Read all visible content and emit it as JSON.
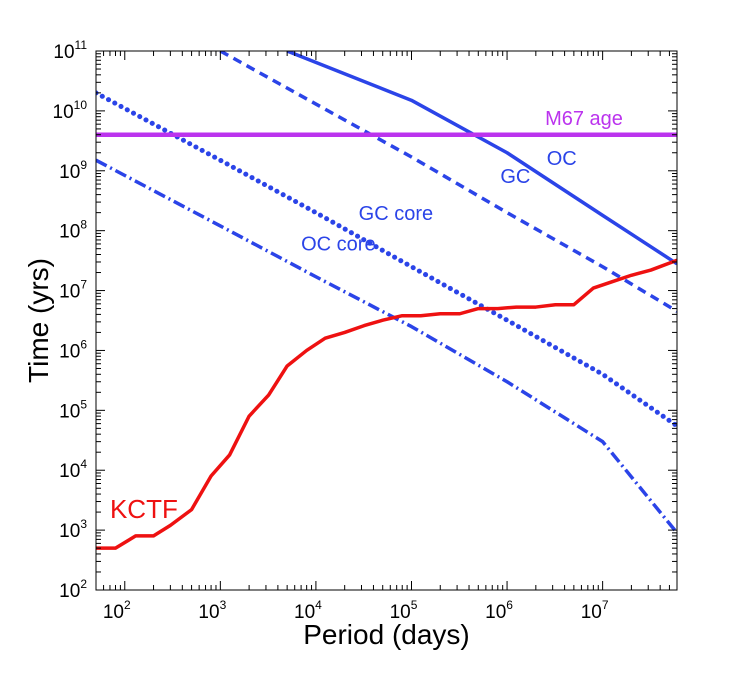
{
  "chart_data": {
    "type": "line",
    "title": "",
    "xlabel": "Period (days)",
    "ylabel": "Time (yrs)",
    "xscale": "log",
    "yscale": "log",
    "xlim": [
      50,
      60000000
    ],
    "ylim": [
      100,
      100000000000
    ],
    "x_ticks": [
      {
        "base": "10",
        "exp": "2",
        "value": 100
      },
      {
        "base": "10",
        "exp": "3",
        "value": 1000
      },
      {
        "base": "10",
        "exp": "4",
        "value": 10000
      },
      {
        "base": "10",
        "exp": "5",
        "value": 100000
      },
      {
        "base": "10",
        "exp": "6",
        "value": 1000000
      },
      {
        "base": "10",
        "exp": "7",
        "value": 10000000
      }
    ],
    "y_ticks": [
      {
        "base": "10",
        "exp": "2",
        "value": 100
      },
      {
        "base": "10",
        "exp": "3",
        "value": 1000
      },
      {
        "base": "10",
        "exp": "4",
        "value": 10000
      },
      {
        "base": "10",
        "exp": "5",
        "value": 100000
      },
      {
        "base": "10",
        "exp": "6",
        "value": 1000000
      },
      {
        "base": "10",
        "exp": "7",
        "value": 10000000
      },
      {
        "base": "10",
        "exp": "8",
        "value": 100000000
      },
      {
        "base": "10",
        "exp": "9",
        "value": 1000000000
      },
      {
        "base": "10",
        "exp": "10",
        "value": 10000000000
      },
      {
        "base": "10",
        "exp": "11",
        "value": 100000000000
      }
    ],
    "series": [
      {
        "name": "OC",
        "color": "#2b44e8",
        "style": "solid",
        "points": [
          [
            5000,
            100000000000
          ],
          [
            100000,
            15000000000
          ],
          [
            1000000,
            2000000000
          ],
          [
            10000000,
            180000000
          ],
          [
            60000000,
            28000000
          ]
        ]
      },
      {
        "name": "GC",
        "color": "#2b44e8",
        "style": "dashed",
        "points": [
          [
            1000,
            100000000000
          ],
          [
            10000,
            13000000000
          ],
          [
            100000,
            1700000000
          ],
          [
            1000000,
            200000000
          ],
          [
            10000000,
            25000000
          ],
          [
            60000000,
            4500000
          ]
        ]
      },
      {
        "name": "GC core",
        "color": "#2b44e8",
        "style": "dotted",
        "points": [
          [
            50,
            20000000000
          ],
          [
            1000,
            1500000000
          ],
          [
            10000,
            200000000
          ],
          [
            100000,
            25000000
          ],
          [
            1000000,
            3200000
          ],
          [
            10000000,
            400000
          ],
          [
            60000000,
            55000
          ]
        ]
      },
      {
        "name": "OC core",
        "color": "#2b44e8",
        "style": "dashdot",
        "points": [
          [
            50,
            1500000000
          ],
          [
            1000,
            120000000
          ],
          [
            10000,
            17000000
          ],
          [
            100000,
            2500000
          ],
          [
            1000000,
            300000
          ],
          [
            10000000,
            30000
          ],
          [
            60000000,
            900
          ]
        ]
      },
      {
        "name": "M67 age",
        "color": "#bb33ee",
        "style": "solid",
        "points": [
          [
            50,
            4000000000
          ],
          [
            60000000,
            4000000000
          ]
        ]
      },
      {
        "name": "KCTF",
        "color": "#ee1111",
        "style": "solid",
        "points": [
          [
            50,
            500
          ],
          [
            80,
            500
          ],
          [
            130,
            800
          ],
          [
            200,
            800
          ],
          [
            300,
            1200
          ],
          [
            500,
            2200
          ],
          [
            800,
            8000
          ],
          [
            1250,
            18000
          ],
          [
            2000,
            80000
          ],
          [
            3200,
            180000
          ],
          [
            5000,
            550000
          ],
          [
            8000,
            1000000
          ],
          [
            12500,
            1600000
          ],
          [
            20000,
            2000000
          ],
          [
            32000,
            2600000
          ],
          [
            50000,
            3200000
          ],
          [
            80000,
            3800000
          ],
          [
            125000,
            3800000
          ],
          [
            200000,
            4100000
          ],
          [
            320000,
            4100000
          ],
          [
            500000,
            5000000
          ],
          [
            800000,
            5000000
          ],
          [
            1250000,
            5300000
          ],
          [
            2000000,
            5300000
          ],
          [
            3200000,
            5800000
          ],
          [
            5000000,
            5800000
          ],
          [
            8000000,
            11000000
          ],
          [
            12500000,
            14000000
          ],
          [
            20000000,
            18000000
          ],
          [
            32000000,
            22000000
          ],
          [
            60000000,
            32000000
          ]
        ]
      }
    ],
    "annotations": [
      {
        "text": "M67 age",
        "color": "#bb33ee",
        "x": 2500000,
        "y": 5800000000
      },
      {
        "text": "OC",
        "color": "#2b44e8",
        "x": 2600000,
        "y": 1250000000
      },
      {
        "text": "GC",
        "color": "#2b44e8",
        "x": 850000,
        "y": 620000000
      },
      {
        "text": "GC core",
        "color": "#2b44e8",
        "x": 28000,
        "y": 150000000
      },
      {
        "text": "OC core",
        "color": "#2b44e8",
        "x": 7000,
        "y": 47000000
      },
      {
        "text": "KCTF",
        "color": "#ee1111",
        "x": 70,
        "y": 1600
      }
    ]
  }
}
